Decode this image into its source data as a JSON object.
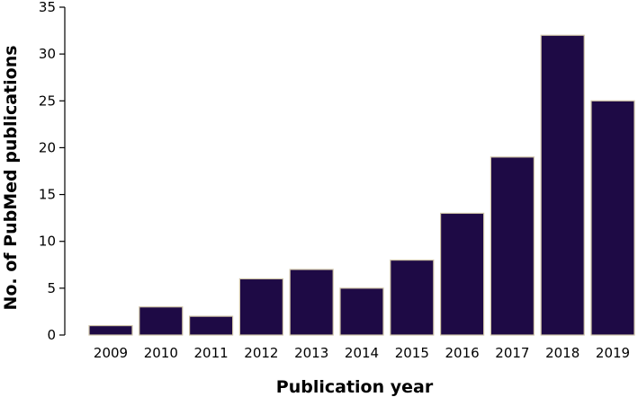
{
  "chart_data": {
    "type": "bar",
    "title": "",
    "xlabel": "Publication year",
    "ylabel": "No. of PubMed publications",
    "categories": [
      "2009",
      "2010",
      "2011",
      "2012",
      "2013",
      "2014",
      "2015",
      "2016",
      "2017",
      "2018",
      "2019"
    ],
    "values": [
      1,
      3,
      2,
      6,
      7,
      5,
      8,
      13,
      19,
      32,
      25
    ],
    "ylim": [
      0,
      35
    ],
    "yticks": [
      0,
      5,
      10,
      15,
      20,
      25,
      30,
      35
    ],
    "grid": false,
    "legend": "none",
    "colors": {
      "bar_fill": "#1e0a45",
      "bar_edge": "#cfc4a8"
    }
  }
}
